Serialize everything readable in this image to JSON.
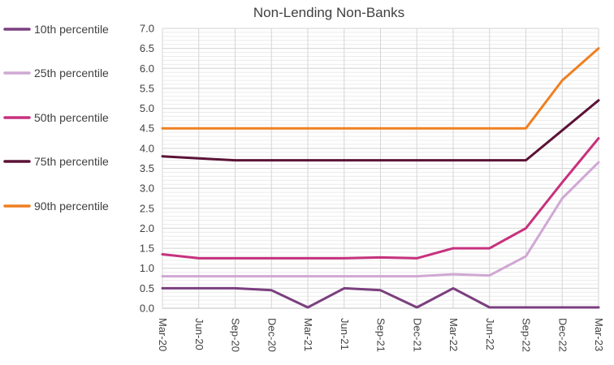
{
  "chart_data": {
    "type": "line",
    "title": "Non-Lending Non-Banks",
    "xlabel": "",
    "ylabel": "",
    "x": [
      "Mar-20",
      "Jun-20",
      "Sep-20",
      "Dec-20",
      "Mar-21",
      "Jun-21",
      "Sep-21",
      "Dec-21",
      "Mar-22",
      "Jun-22",
      "Sep-22",
      "Dec-22",
      "Mar-23"
    ],
    "ylim": [
      0,
      7.0
    ],
    "y_ticks": [
      "0.0",
      "0.5",
      "1.0",
      "1.5",
      "2.0",
      "2.5",
      "3.0",
      "3.5",
      "4.0",
      "4.5",
      "5.0",
      "5.5",
      "6.0",
      "6.5",
      "7.0"
    ],
    "grid": true,
    "legend_position": "left",
    "series": [
      {
        "name": "10th percentile",
        "color": "#7b3f7f",
        "values": [
          0.5,
          0.5,
          0.5,
          0.45,
          0.02,
          0.5,
          0.45,
          0.02,
          0.5,
          0.02,
          0.02,
          0.02,
          0.02
        ]
      },
      {
        "name": "25th percentile",
        "color": "#d0a8d4",
        "values": [
          0.8,
          0.8,
          0.8,
          0.8,
          0.8,
          0.8,
          0.8,
          0.8,
          0.85,
          0.82,
          1.3,
          2.75,
          3.65
        ]
      },
      {
        "name": "50th percentile",
        "color": "#c7317d",
        "values": [
          1.35,
          1.25,
          1.25,
          1.25,
          1.25,
          1.25,
          1.27,
          1.25,
          1.5,
          1.5,
          2.0,
          3.15,
          4.25
        ]
      },
      {
        "name": "75th percentile",
        "color": "#5c1236",
        "values": [
          3.8,
          3.75,
          3.7,
          3.7,
          3.7,
          3.7,
          3.7,
          3.7,
          3.7,
          3.7,
          3.7,
          4.45,
          5.2
        ]
      },
      {
        "name": "90th percentile",
        "color": "#f07f21",
        "values": [
          4.5,
          4.5,
          4.5,
          4.5,
          4.5,
          4.5,
          4.5,
          4.5,
          4.5,
          4.5,
          4.5,
          5.7,
          6.5
        ]
      }
    ]
  }
}
